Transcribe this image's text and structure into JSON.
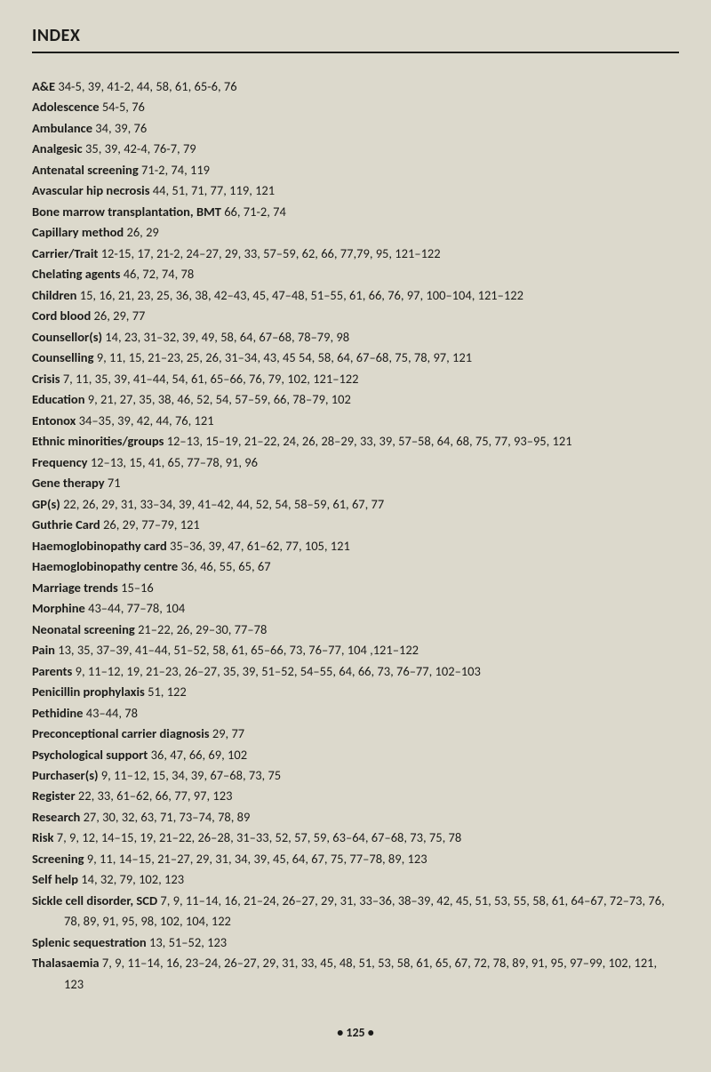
{
  "header": "INDEX",
  "footer": "• 125 •",
  "entries": [
    {
      "term": "A&E",
      "pages": "34-5, 39, 41-2, 44, 58, 61, 65-6, 76"
    },
    {
      "term": "Adolescence",
      "pages": "54-5, 76"
    },
    {
      "term": "Ambulance",
      "pages": "34, 39, 76"
    },
    {
      "term": "Analgesic",
      "pages": "35, 39, 42-4, 76-7, 79"
    },
    {
      "term": "Antenatal screening",
      "pages": "71-2, 74, 119"
    },
    {
      "term": "Avascular hip necrosis",
      "pages": "44, 51, 71, 77, 119, 121"
    },
    {
      "term": "Bone marrow transplantation, BMT",
      "pages": "66, 71-2, 74"
    },
    {
      "term": "Capillary method",
      "pages": "26, 29"
    },
    {
      "term": "Carrier/Trait",
      "pages": "12-15, 17, 21-2, 24–27, 29, 33, 57–59, 62, 66, 77,79, 95, 121–122"
    },
    {
      "term": "Chelating agents",
      "pages": "46, 72, 74, 78"
    },
    {
      "term": "Children",
      "pages": "15, 16, 21, 23, 25, 36, 38, 42–43, 45, 47–48, 51–55, 61, 66, 76, 97, 100–104, 121–122"
    },
    {
      "term": "Cord blood",
      "pages": "26, 29, 77"
    },
    {
      "term": "Counsellor(s)",
      "pages": "14, 23, 31–32, 39, 49, 58, 64, 67–68, 78–79, 98"
    },
    {
      "term": "Counselling",
      "pages": "9, 11, 15, 21–23, 25, 26, 31–34, 43, 45 54, 58, 64, 67–68, 75, 78, 97, 121"
    },
    {
      "term": "Crisis",
      "pages": "7, 11, 35, 39, 41–44, 54, 61, 65–66, 76, 79, 102, 121–122"
    },
    {
      "term": "Education",
      "pages": "9, 21, 27, 35, 38, 46, 52, 54, 57–59, 66, 78–79, 102"
    },
    {
      "term": "Entonox",
      "pages": "34–35, 39, 42, 44, 76, 121"
    },
    {
      "term": "Ethnic minorities/groups",
      "pages": "12–13, 15–19, 21–22, 24, 26, 28–29, 33, 39, 57–58, 64, 68, 75, 77, 93–95, 121"
    },
    {
      "term": "Frequency",
      "pages": "12–13, 15, 41, 65, 77–78, 91, 96"
    },
    {
      "term": "Gene therapy",
      "pages": "71"
    },
    {
      "term": "GP(s)",
      "pages": "22, 26, 29, 31, 33–34, 39, 41–42, 44, 52, 54, 58–59, 61, 67, 77"
    },
    {
      "term": "Guthrie Card",
      "pages": "26, 29, 77–79, 121"
    },
    {
      "term": "Haemoglobinopathy card",
      "pages": "35–36, 39, 47, 61–62, 77, 105, 121"
    },
    {
      "term": "Haemoglobinopathy centre",
      "pages": "36, 46, 55, 65, 67"
    },
    {
      "term": "Marriage trends",
      "pages": "15–16"
    },
    {
      "term": "Morphine",
      "pages": "43–44, 77–78, 104"
    },
    {
      "term": "Neonatal screening",
      "pages": "21–22, 26, 29–30, 77–78"
    },
    {
      "term": "Pain",
      "pages": "13, 35, 37–39, 41–44, 51–52, 58, 61, 65–66, 73, 76–77, 104 ,121–122"
    },
    {
      "term": "Parents",
      "pages": "9, 11–12, 19, 21–23, 26–27, 35, 39, 51–52, 54–55, 64, 66, 73, 76–77, 102–103"
    },
    {
      "term": "Penicillin prophylaxis",
      "pages": "51, 122"
    },
    {
      "term": "Pethidine",
      "pages": "43–44, 78"
    },
    {
      "term": "Preconceptional carrier diagnosis",
      "pages": "29, 77"
    },
    {
      "term": "Psychological support",
      "pages": "36, 47, 66, 69, 102"
    },
    {
      "term": "Purchaser(s)",
      "pages": "9, 11–12, 15, 34, 39, 67–68, 73, 75"
    },
    {
      "term": "Register",
      "pages": "22, 33, 61–62, 66, 77, 97, 123"
    },
    {
      "term": "Research",
      "pages": "27, 30, 32, 63, 71, 73–74, 78, 89"
    },
    {
      "term": "Risk",
      "pages": "7, 9, 12, 14–15, 19, 21–22, 26–28, 31–33, 52, 57, 59, 63–64, 67–68, 73, 75, 78"
    },
    {
      "term": "Screening",
      "pages": "9, 11, 14–15, 21–27, 29, 31, 34, 39, 45, 64, 67, 75, 77–78, 89, 123"
    },
    {
      "term": "Self help",
      "pages": "14, 32, 79, 102, 123"
    },
    {
      "term": "Sickle cell disorder, SCD",
      "pages": "7, 9, 11–14, 16, 21–24, 26–27, 29, 31, 33–36, 38–39, 42, 45, 51, 53, 55, 58, 61, 64–67, 72–73, 76, 78, 89, 91, 95, 98, 102, 104, 122"
    },
    {
      "term": "Splenic sequestration",
      "pages": "13, 51–52, 123"
    },
    {
      "term": "Thalasaemia",
      "pages": "7, 9, 11–14, 16, 23–24, 26–27, 29, 31, 33, 45, 48, 51, 53, 58, 61, 65, 67, 72, 78, 89, 91, 95, 97–99, 102, 121, 123"
    }
  ]
}
